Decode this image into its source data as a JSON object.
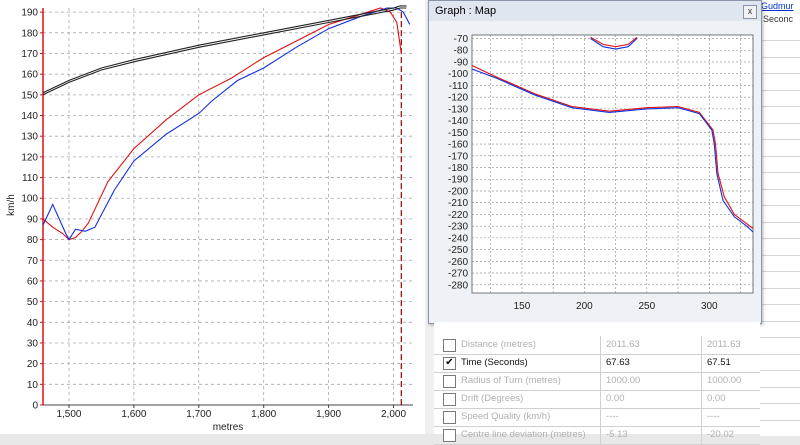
{
  "speed_chart": {
    "ylabel": "km/h",
    "xlabel": "metres",
    "y_ticks": [
      "190",
      "180",
      "170",
      "160",
      "150",
      "140",
      "130",
      "120",
      "110",
      "100",
      "90",
      "80",
      "70",
      "60",
      "50",
      "40",
      "30",
      "20",
      "10",
      "0"
    ],
    "x_ticks": [
      "1,500",
      "1,600",
      "1,700",
      "1,800",
      "1,900",
      "2,000"
    ],
    "colors": {
      "red": "#e01010",
      "blue": "#1030e0",
      "black": "#222222",
      "grid": "#a8a8a8",
      "axis": "#e01010"
    }
  },
  "map_window": {
    "title": "Graph : Map",
    "close_glyph": "x",
    "y_ticks": [
      "-70",
      "-80",
      "-90",
      "-100",
      "-110",
      "-120",
      "-130",
      "-140",
      "-150",
      "-160",
      "-170",
      "-180",
      "-190",
      "-200",
      "-210",
      "-220",
      "-230",
      "-240",
      "-250",
      "-260",
      "-270",
      "-280"
    ],
    "x_ticks": [
      "150",
      "200",
      "250",
      "300"
    ]
  },
  "header_fragments": {
    "name_fragment": "Gudmur",
    "unit_fragment": "Seconc"
  },
  "table": {
    "rows": [
      {
        "label": "Distance (metres)",
        "v1": "2011.63",
        "v2": "2011.63",
        "checked": false,
        "active": false
      },
      {
        "label": "Time (Seconds)",
        "v1": "67.63",
        "v2": "67.51",
        "checked": true,
        "active": true
      },
      {
        "label": "Radius of Turn (metres)",
        "v1": "1000.00",
        "v2": "1000.00",
        "checked": false,
        "active": false
      },
      {
        "label": "Drift (Degrees)",
        "v1": "0.00",
        "v2": "0.00",
        "checked": false,
        "active": false
      },
      {
        "label": "Speed Quality (km/h)",
        "v1": "----",
        "v2": "----",
        "checked": false,
        "active": false
      },
      {
        "label": "Centre line deviation (metres)",
        "v1": "-5.13",
        "v2": "-20.02",
        "checked": false,
        "active": false
      }
    ]
  },
  "chart_data": [
    {
      "type": "line",
      "xlabel": "metres",
      "ylabel": "km/h",
      "xlim": [
        1460,
        2030
      ],
      "ylim": [
        0,
        192
      ],
      "grid": true,
      "series": [
        {
          "color": "#e01010",
          "x": [
            1460,
            1475,
            1490,
            1500,
            1510,
            1520,
            1530,
            1560,
            1600,
            1650,
            1700,
            1750,
            1800,
            1850,
            1900,
            1950,
            1980,
            1995,
            2005,
            2012
          ],
          "y": [
            90,
            86,
            83,
            80,
            81,
            84,
            88,
            108,
            124,
            138,
            150,
            158,
            168,
            176,
            184,
            189,
            192,
            190,
            185,
            170
          ]
        },
        {
          "color": "#1030e0",
          "x": [
            1460,
            1475,
            1485,
            1495,
            1500,
            1510,
            1525,
            1540,
            1570,
            1600,
            1650,
            1700,
            1720,
            1760,
            1800,
            1850,
            1900,
            1950,
            1990,
            2005,
            2015,
            2025
          ],
          "y": [
            87,
            97,
            90,
            83,
            80,
            85,
            84,
            86,
            104,
            118,
            131,
            141,
            147,
            157,
            163,
            173,
            182,
            188,
            192,
            192,
            190,
            184
          ]
        },
        {
          "color": "#222222",
          "x": [
            1460,
            1500,
            1550,
            1600,
            1700,
            1800,
            1900,
            1950,
            2000,
            2010,
            2020
          ],
          "y": [
            150,
            156,
            162,
            166,
            173,
            179,
            185,
            188,
            191,
            192,
            192
          ]
        },
        {
          "color": "#222222",
          "x": [
            1460,
            1500,
            1550,
            1600,
            1700,
            1800,
            1900,
            1950,
            2000,
            2010,
            2020
          ],
          "y": [
            151,
            157,
            163,
            167,
            174,
            180,
            186,
            189,
            192,
            193,
            193
          ]
        }
      ]
    },
    {
      "type": "line",
      "xlim": [
        110,
        335
      ],
      "ylim": [
        -287,
        -67
      ],
      "grid": true,
      "series": [
        {
          "color": "#e01010",
          "x": [
            110,
            130,
            160,
            190,
            220,
            250,
            275,
            292,
            303,
            305,
            307,
            312,
            320,
            330,
            335
          ],
          "y": [
            -93,
            -103,
            -117,
            -128,
            -132,
            -129,
            -128,
            -133,
            -148,
            -160,
            -185,
            -205,
            -220,
            -228,
            -232
          ]
        },
        {
          "color": "#1030e0",
          "x": [
            110,
            130,
            160,
            190,
            220,
            250,
            275,
            292,
            302,
            304,
            306,
            311,
            320,
            330,
            335
          ],
          "y": [
            -96,
            -104,
            -118,
            -129,
            -133,
            -130,
            -129,
            -134,
            -148,
            -160,
            -185,
            -208,
            -222,
            -230,
            -235
          ]
        },
        {
          "color": "#e01010",
          "x": [
            205,
            215,
            225,
            235,
            242
          ],
          "y": [
            -69,
            -75,
            -77,
            -75,
            -69
          ]
        },
        {
          "color": "#1030e0",
          "x": [
            205,
            215,
            225,
            235,
            242
          ],
          "y": [
            -70,
            -77,
            -79,
            -77,
            -70
          ]
        }
      ]
    }
  ]
}
